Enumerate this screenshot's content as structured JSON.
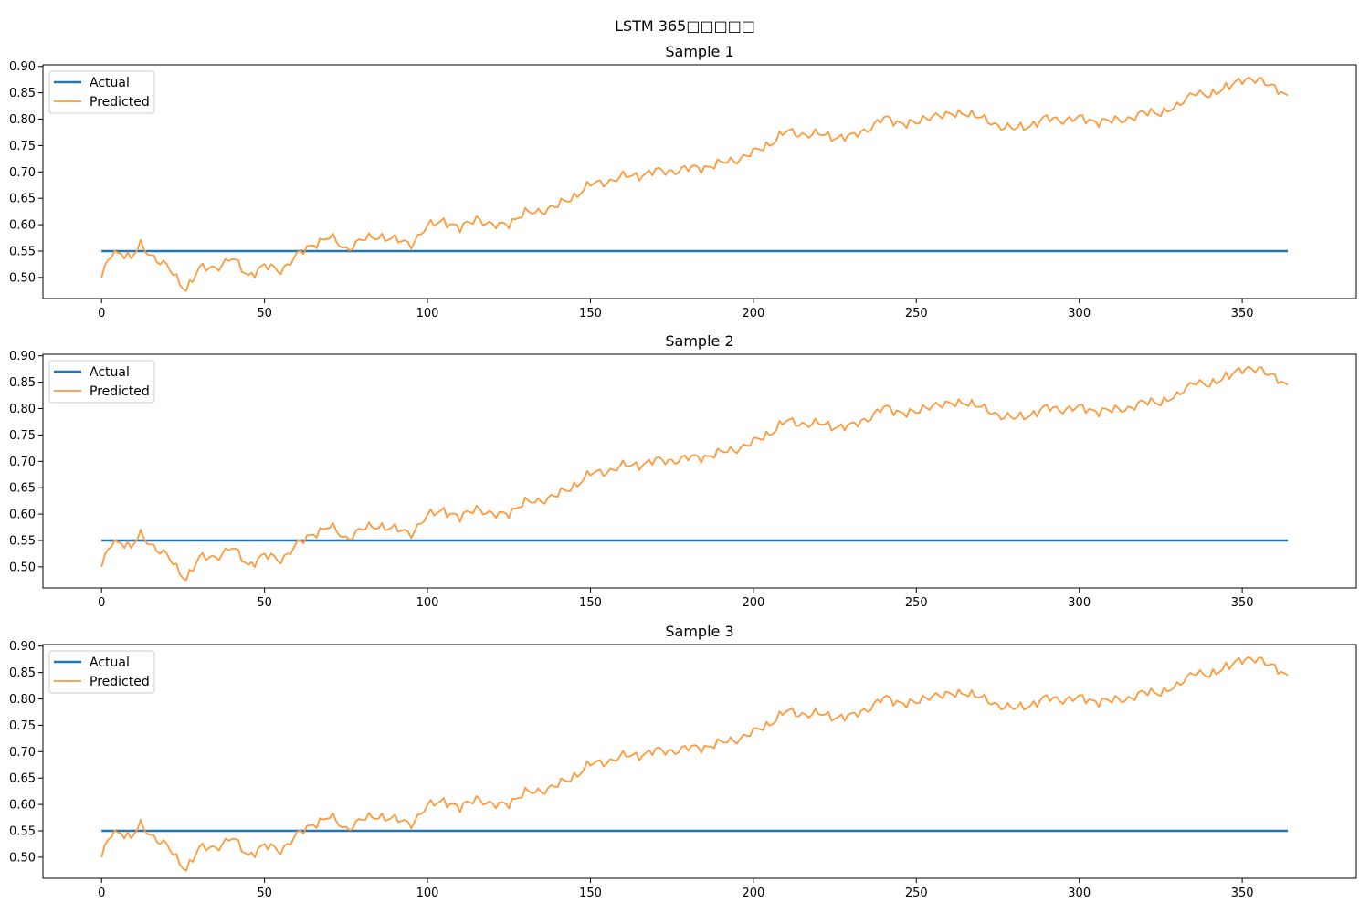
{
  "figure": {
    "title": "LSTM 365□□□□□"
  },
  "colors": {
    "actual": "#1f77b4",
    "predicted": "#ff9a3c",
    "axes": "#000000",
    "background": "#ffffff"
  },
  "chart_data": [
    {
      "type": "line",
      "title": "Sample 1",
      "xlim": [
        -18,
        385
      ],
      "ylim": [
        0.46,
        0.903
      ],
      "xticks": [
        0,
        50,
        100,
        150,
        200,
        250,
        300,
        350
      ],
      "yticks": [
        0.5,
        0.55,
        0.6,
        0.65,
        0.7,
        0.75,
        0.8,
        0.85,
        0.9
      ],
      "legend": {
        "placement": "upper-left",
        "entries": [
          "Actual",
          "Predicted"
        ]
      },
      "grid": false,
      "series": [
        {
          "name": "Actual",
          "x": [
            0,
            364
          ],
          "values": [
            0.55,
            0.55
          ]
        },
        {
          "name": "Predicted",
          "x": [
            0,
            3,
            6,
            9,
            12,
            15,
            20,
            24,
            26,
            30,
            35,
            40,
            45,
            50,
            55,
            60,
            65,
            70,
            75,
            80,
            85,
            90,
            95,
            100,
            105,
            110,
            115,
            120,
            125,
            130,
            140,
            150,
            160,
            170,
            180,
            190,
            195,
            200,
            210,
            220,
            230,
            240,
            250,
            255,
            260,
            265,
            270,
            280,
            290,
            300,
            310,
            320,
            330,
            335,
            340,
            345,
            350,
            355,
            360,
            364
          ],
          "values": [
            0.5,
            0.545,
            0.55,
            0.535,
            0.56,
            0.545,
            0.52,
            0.49,
            0.48,
            0.515,
            0.52,
            0.535,
            0.505,
            0.52,
            0.515,
            0.54,
            0.565,
            0.575,
            0.555,
            0.57,
            0.58,
            0.57,
            0.565,
            0.595,
            0.61,
            0.59,
            0.615,
            0.595,
            0.605,
            0.62,
            0.635,
            0.675,
            0.69,
            0.7,
            0.705,
            0.715,
            0.725,
            0.735,
            0.775,
            0.77,
            0.765,
            0.8,
            0.79,
            0.81,
            0.805,
            0.815,
            0.8,
            0.78,
            0.8,
            0.8,
            0.795,
            0.81,
            0.82,
            0.855,
            0.84,
            0.865,
            0.87,
            0.88,
            0.855,
            0.845
          ]
        }
      ]
    },
    {
      "type": "line",
      "title": "Sample 2",
      "xlim": [
        -18,
        385
      ],
      "ylim": [
        0.46,
        0.903
      ],
      "xticks": [
        0,
        50,
        100,
        150,
        200,
        250,
        300,
        350
      ],
      "yticks": [
        0.5,
        0.55,
        0.6,
        0.65,
        0.7,
        0.75,
        0.8,
        0.85,
        0.9
      ],
      "legend": {
        "placement": "upper-left",
        "entries": [
          "Actual",
          "Predicted"
        ]
      },
      "grid": false,
      "series": [
        {
          "name": "Actual",
          "x": [
            0,
            364
          ],
          "values": [
            0.55,
            0.55
          ]
        },
        {
          "name": "Predicted",
          "x": [
            0,
            3,
            6,
            9,
            12,
            15,
            20,
            24,
            26,
            30,
            35,
            40,
            45,
            50,
            55,
            60,
            65,
            70,
            75,
            80,
            85,
            90,
            95,
            100,
            105,
            110,
            115,
            120,
            125,
            130,
            140,
            150,
            160,
            170,
            180,
            190,
            195,
            200,
            210,
            220,
            230,
            240,
            250,
            255,
            260,
            265,
            270,
            280,
            290,
            300,
            310,
            320,
            330,
            335,
            340,
            345,
            350,
            355,
            360,
            364
          ],
          "values": [
            0.5,
            0.545,
            0.55,
            0.535,
            0.56,
            0.545,
            0.52,
            0.49,
            0.48,
            0.515,
            0.52,
            0.535,
            0.505,
            0.52,
            0.515,
            0.54,
            0.565,
            0.575,
            0.555,
            0.57,
            0.58,
            0.57,
            0.565,
            0.595,
            0.61,
            0.59,
            0.615,
            0.595,
            0.605,
            0.62,
            0.635,
            0.675,
            0.69,
            0.7,
            0.705,
            0.715,
            0.725,
            0.735,
            0.775,
            0.77,
            0.765,
            0.8,
            0.79,
            0.81,
            0.805,
            0.815,
            0.8,
            0.78,
            0.8,
            0.8,
            0.795,
            0.81,
            0.82,
            0.855,
            0.84,
            0.865,
            0.87,
            0.88,
            0.855,
            0.845
          ]
        }
      ]
    },
    {
      "type": "line",
      "title": "Sample 3",
      "xlim": [
        -18,
        385
      ],
      "ylim": [
        0.46,
        0.903
      ],
      "xticks": [
        0,
        50,
        100,
        150,
        200,
        250,
        300,
        350
      ],
      "yticks": [
        0.5,
        0.55,
        0.6,
        0.65,
        0.7,
        0.75,
        0.8,
        0.85,
        0.9
      ],
      "legend": {
        "placement": "upper-left",
        "entries": [
          "Actual",
          "Predicted"
        ]
      },
      "grid": false,
      "series": [
        {
          "name": "Actual",
          "x": [
            0,
            364
          ],
          "values": [
            0.55,
            0.55
          ]
        },
        {
          "name": "Predicted",
          "x": [
            0,
            3,
            6,
            9,
            12,
            15,
            20,
            24,
            26,
            30,
            35,
            40,
            45,
            50,
            55,
            60,
            65,
            70,
            75,
            80,
            85,
            90,
            95,
            100,
            105,
            110,
            115,
            120,
            125,
            130,
            140,
            150,
            160,
            170,
            180,
            190,
            195,
            200,
            210,
            220,
            230,
            240,
            250,
            255,
            260,
            265,
            270,
            280,
            290,
            300,
            310,
            320,
            330,
            335,
            340,
            345,
            350,
            355,
            360,
            364
          ],
          "values": [
            0.5,
            0.545,
            0.55,
            0.535,
            0.56,
            0.545,
            0.52,
            0.49,
            0.48,
            0.515,
            0.52,
            0.535,
            0.505,
            0.52,
            0.515,
            0.54,
            0.565,
            0.575,
            0.555,
            0.57,
            0.58,
            0.57,
            0.565,
            0.595,
            0.61,
            0.59,
            0.615,
            0.595,
            0.605,
            0.62,
            0.635,
            0.675,
            0.69,
            0.7,
            0.705,
            0.715,
            0.725,
            0.735,
            0.775,
            0.77,
            0.765,
            0.8,
            0.79,
            0.81,
            0.805,
            0.815,
            0.8,
            0.78,
            0.8,
            0.8,
            0.795,
            0.81,
            0.82,
            0.855,
            0.84,
            0.865,
            0.87,
            0.88,
            0.855,
            0.845
          ]
        }
      ]
    }
  ]
}
